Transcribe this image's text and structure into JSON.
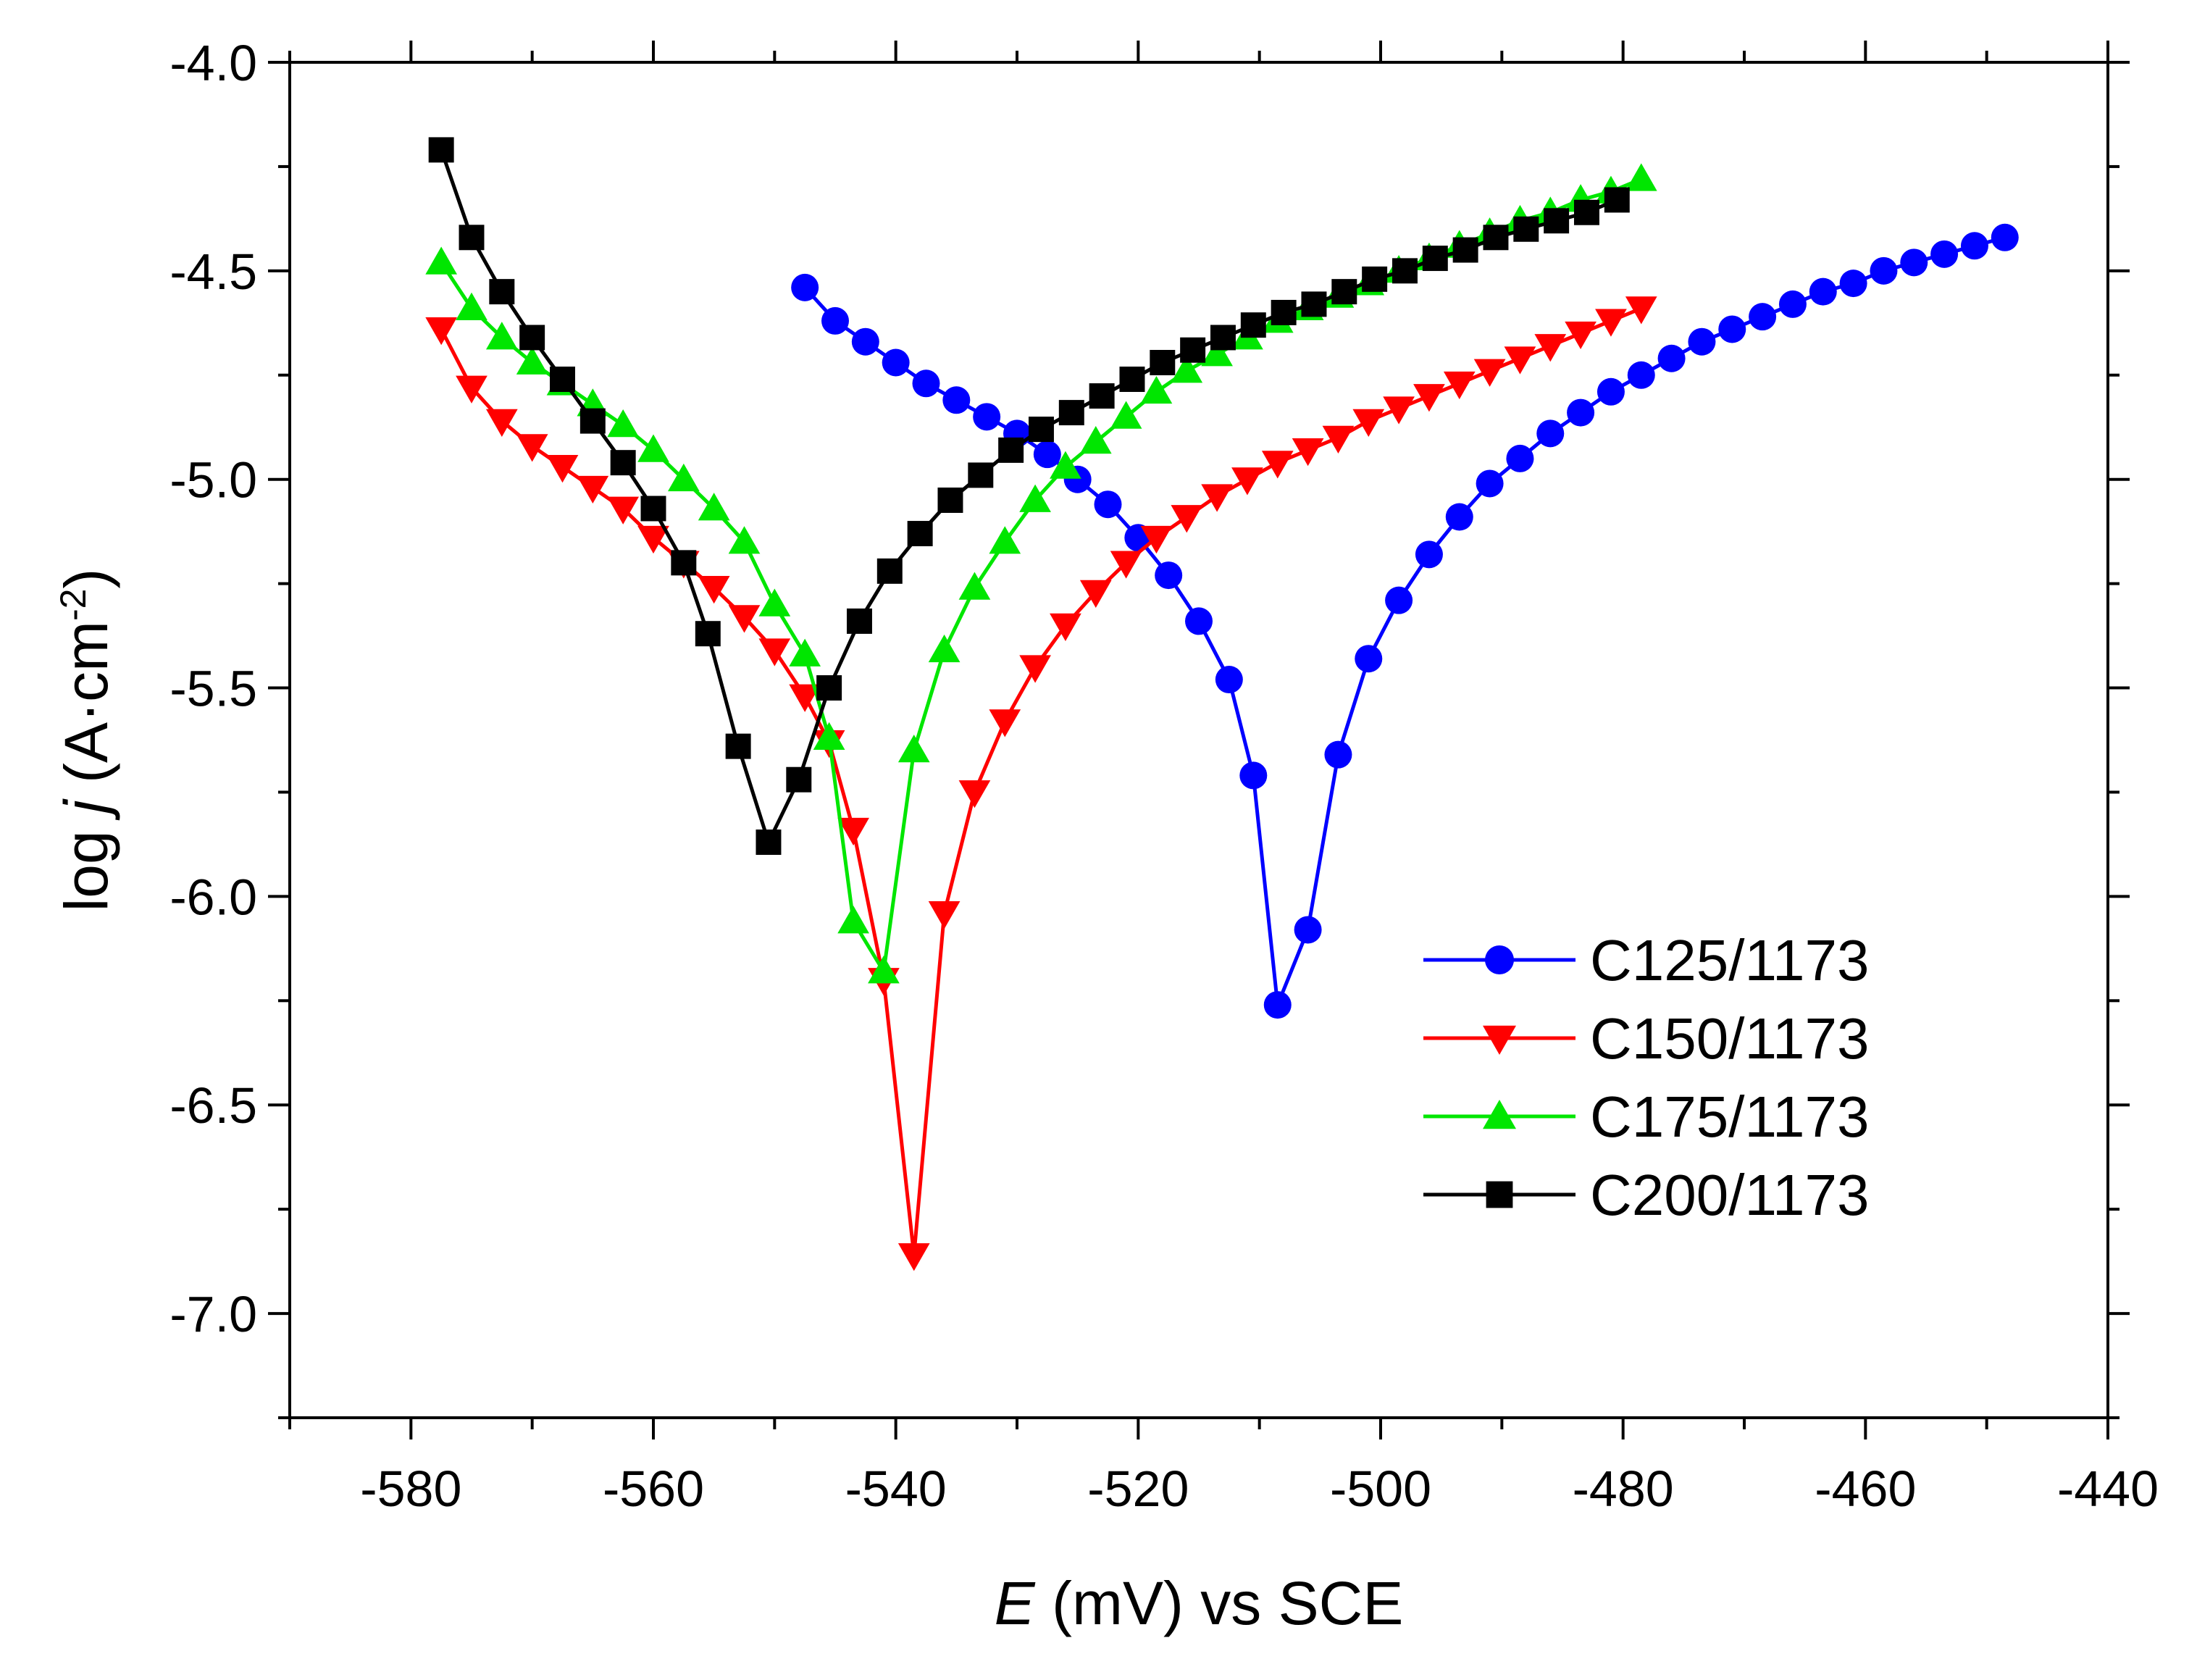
{
  "chart_data": {
    "type": "line",
    "title": "",
    "xlabel": {
      "italic": "E",
      "rest": " (mV) vs SCE"
    },
    "ylabel": {
      "prefix": "log ",
      "italic": "j",
      "unit_open": " (A·cm",
      "unit_exp": "-2",
      "unit_close": ")"
    },
    "xlim": [
      -590,
      -440
    ],
    "ylim": [
      -7.25,
      -4.0
    ],
    "xticks": [
      -580,
      -560,
      -540,
      -520,
      -500,
      -480,
      -460,
      -440
    ],
    "xtick_labels": [
      "-580",
      "-560",
      "-540",
      "-520",
      "-500",
      "-480",
      "-460",
      "-440"
    ],
    "yticks": [
      -7.0,
      -6.5,
      -6.0,
      -5.5,
      -5.0,
      -4.5,
      -4.0
    ],
    "ytick_labels": [
      "-7.0",
      "-6.5",
      "-6.0",
      "-5.5",
      "-5.0",
      "-4.5",
      "-4.0"
    ],
    "grid": false,
    "legend_position": "bottom-right",
    "series": [
      {
        "name": "C125/1173",
        "color": "#0000ff",
        "marker": "circle",
        "x": [
          -547.5,
          -545,
          -542.5,
          -540,
          -537.5,
          -535,
          -532.5,
          -530,
          -527.5,
          -525,
          -522.5,
          -520,
          -517.5,
          -515,
          -512.5,
          -510.5,
          -508.5,
          -506,
          -503.5,
          -501,
          -498.5,
          -496,
          -493.5,
          -491,
          -488.5,
          -486,
          -483.5,
          -481,
          -478.5,
          -476,
          -473.5,
          -471,
          -468.5,
          -466,
          -463.5,
          -461,
          -458.5,
          -456,
          -453.5,
          -451,
          -448.5
        ],
        "y": [
          -4.54,
          -4.62,
          -4.67,
          -4.72,
          -4.77,
          -4.81,
          -4.85,
          -4.89,
          -4.94,
          -5.0,
          -5.06,
          -5.14,
          -5.23,
          -5.34,
          -5.48,
          -5.71,
          -6.26,
          -6.08,
          -5.66,
          -5.43,
          -5.29,
          -5.18,
          -5.09,
          -5.01,
          -4.95,
          -4.89,
          -4.84,
          -4.79,
          -4.75,
          -4.71,
          -4.67,
          -4.64,
          -4.61,
          -4.58,
          -4.55,
          -4.53,
          -4.5,
          -4.48,
          -4.46,
          -4.44,
          -4.42
        ]
      },
      {
        "name": "C150/1173",
        "color": "#ff0000",
        "marker": "triangle-down",
        "x": [
          -577.5,
          -575,
          -572.5,
          -570,
          -567.5,
          -565,
          -562.5,
          -560,
          -557.5,
          -555,
          -552.5,
          -550,
          -547.5,
          -545.5,
          -543.5,
          -541,
          -538.5,
          -536,
          -533.5,
          -531,
          -528.5,
          -526,
          -523.5,
          -521,
          -518.5,
          -516,
          -513.5,
          -511,
          -508.5,
          -506,
          -503.5,
          -501,
          -498.5,
          -496,
          -493.5,
          -491,
          -488.5,
          -486,
          -483.5,
          -481,
          -478.5
        ],
        "y": [
          -4.64,
          -4.78,
          -4.86,
          -4.92,
          -4.97,
          -5.02,
          -5.07,
          -5.14,
          -5.2,
          -5.26,
          -5.33,
          -5.41,
          -5.52,
          -5.63,
          -5.84,
          -6.2,
          -6.86,
          -6.04,
          -5.75,
          -5.58,
          -5.45,
          -5.35,
          -5.27,
          -5.2,
          -5.14,
          -5.09,
          -5.04,
          -5.0,
          -4.96,
          -4.93,
          -4.9,
          -4.86,
          -4.83,
          -4.8,
          -4.77,
          -4.74,
          -4.71,
          -4.68,
          -4.65,
          -4.62,
          -4.59
        ]
      },
      {
        "name": "C175/1173",
        "color": "#00e600",
        "marker": "triangle-up",
        "x": [
          -577.5,
          -575,
          -572.5,
          -570,
          -567.5,
          -565,
          -562.5,
          -560,
          -557.5,
          -555,
          -552.5,
          -550,
          -547.5,
          -545.5,
          -543.5,
          -541,
          -538.5,
          -536,
          -533.5,
          -531,
          -528.5,
          -526,
          -523.5,
          -521,
          -518.5,
          -516,
          -513.5,
          -511,
          -508.5,
          -506,
          -503.5,
          -501,
          -498.5,
          -496,
          -493.5,
          -491,
          -488.5,
          -486,
          -483.5,
          -481,
          -478.5
        ],
        "y": [
          -4.48,
          -4.59,
          -4.66,
          -4.72,
          -4.77,
          -4.82,
          -4.87,
          -4.93,
          -5.0,
          -5.07,
          -5.15,
          -5.3,
          -5.42,
          -5.62,
          -6.06,
          -6.18,
          -5.65,
          -5.41,
          -5.26,
          -5.15,
          -5.05,
          -4.97,
          -4.91,
          -4.85,
          -4.79,
          -4.74,
          -4.7,
          -4.66,
          -4.62,
          -4.59,
          -4.56,
          -4.53,
          -4.5,
          -4.47,
          -4.44,
          -4.41,
          -4.38,
          -4.36,
          -4.33,
          -4.31,
          -4.28
        ]
      },
      {
        "name": "C200/1173",
        "color": "#000000",
        "marker": "square",
        "x": [
          -577.5,
          -575,
          -572.5,
          -570,
          -567.5,
          -565,
          -562.5,
          -560,
          -557.5,
          -555.5,
          -553,
          -550.5,
          -548,
          -545.5,
          -543,
          -540.5,
          -538,
          -535.5,
          -533,
          -530.5,
          -528,
          -525.5,
          -523,
          -520.5,
          -518,
          -515.5,
          -513,
          -510.5,
          -508,
          -505.5,
          -503,
          -500.5,
          -498,
          -495.5,
          -493,
          -490.5,
          -488,
          -485.5,
          -483,
          -480.5
        ],
        "y": [
          -4.21,
          -4.42,
          -4.55,
          -4.66,
          -4.76,
          -4.86,
          -4.96,
          -5.07,
          -5.2,
          -5.37,
          -5.64,
          -5.87,
          -5.72,
          -5.5,
          -5.34,
          -5.22,
          -5.13,
          -5.05,
          -4.99,
          -4.93,
          -4.88,
          -4.84,
          -4.8,
          -4.76,
          -4.72,
          -4.69,
          -4.66,
          -4.63,
          -4.6,
          -4.58,
          -4.55,
          -4.52,
          -4.5,
          -4.47,
          -4.45,
          -4.42,
          -4.4,
          -4.38,
          -4.36,
          -4.33
        ]
      }
    ]
  }
}
